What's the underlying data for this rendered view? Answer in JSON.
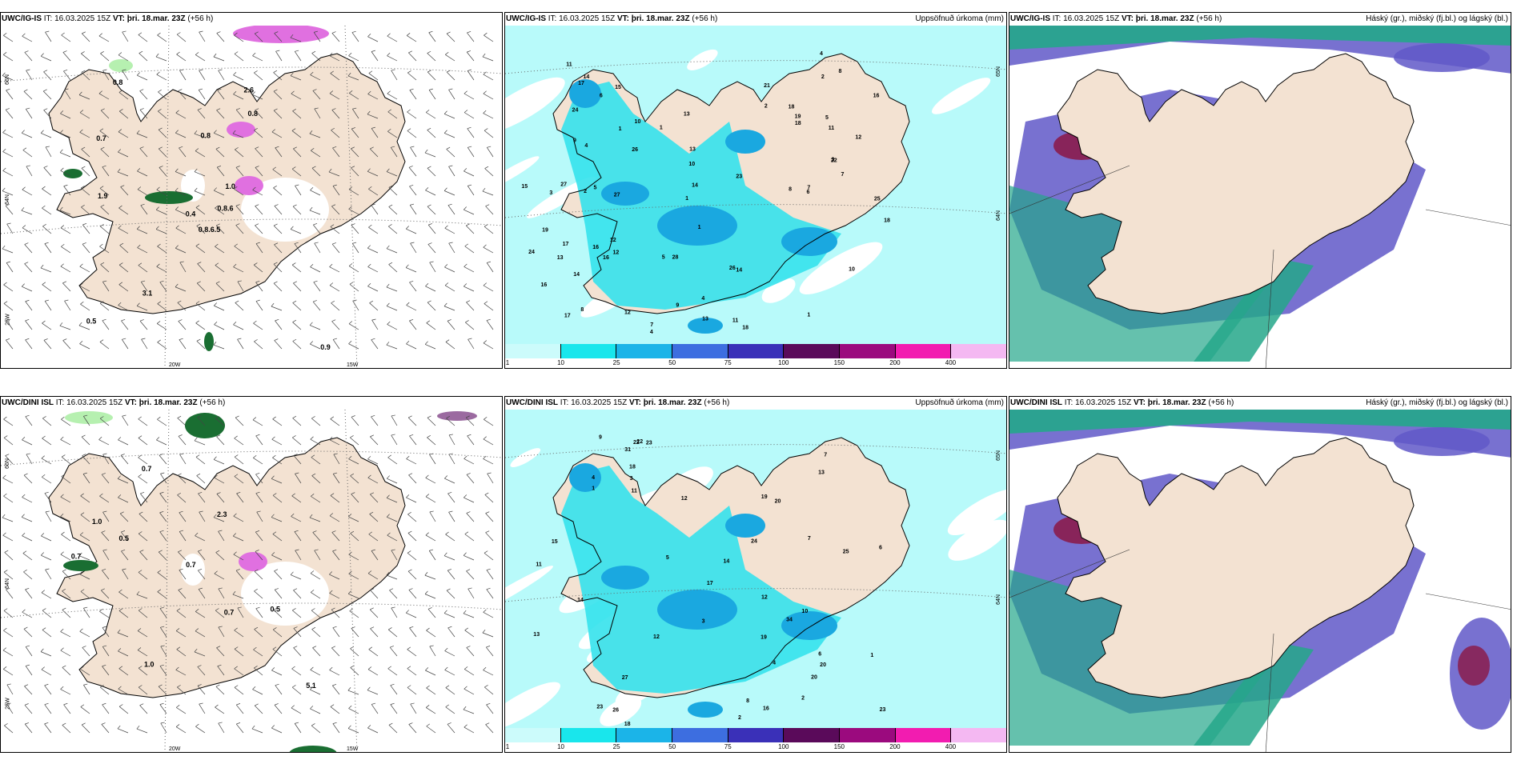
{
  "panels": [
    {
      "id": "top-left",
      "row": 0,
      "col": 0,
      "kind": "wind",
      "model": "UWC/IG-IS",
      "it_label": "IT:",
      "it_value": "16.03.2025 15Z",
      "vt_label": "VT:",
      "vt_value": "þri. 18.mar. 23Z",
      "lead": "(+56 h)",
      "right_title": "",
      "values": [
        "0.8.6.5",
        "0.7",
        "0.4",
        "0.5",
        "1.0",
        "3.1",
        "2.6",
        "0.8",
        "0.8",
        "0.8.6",
        "0.8",
        "0.9",
        "1.9"
      ],
      "lat_labels": [
        "66N",
        "64N",
        "25W"
      ],
      "lon_labels": [
        "20W",
        "15W"
      ]
    },
    {
      "id": "top-mid",
      "row": 0,
      "col": 1,
      "kind": "precip",
      "model": "UWC/IG-IS",
      "it_label": "IT:",
      "it_value": "16.03.2025 15Z",
      "vt_label": "VT:",
      "vt_value": "þri. 18.mar. 23Z",
      "lead": "(+56 h)",
      "right_title": "Uppsöfnuð úrkoma (mm)",
      "values": [
        "8",
        "1",
        "7",
        "1",
        "4",
        "1",
        "1",
        "16",
        "28",
        "25",
        "16",
        "6",
        "7",
        "12",
        "17",
        "16",
        "14",
        "13",
        "27",
        "23",
        "26",
        "24",
        "12",
        "6",
        "5",
        "10",
        "9",
        "4",
        "8",
        "11",
        "3",
        "13",
        "4",
        "18",
        "17",
        "26",
        "17",
        "19",
        "24",
        "14",
        "21",
        "22",
        "18",
        "27",
        "13",
        "16",
        "14",
        "11",
        "15",
        "19",
        "12",
        "8",
        "10",
        "4",
        "7",
        "5",
        "9",
        "10",
        "18",
        "11",
        "15",
        "12",
        "13",
        "18",
        "14",
        "3",
        "5",
        "2",
        "2",
        "1",
        "2"
      ],
      "lat_labels": [
        "65N",
        "64N"
      ],
      "lon_labels": []
    },
    {
      "id": "top-right",
      "row": 0,
      "col": 2,
      "kind": "cloud",
      "model": "UWC/IG-IS",
      "it_label": "IT:",
      "it_value": "16.03.2025 15Z",
      "vt_label": "VT:",
      "vt_value": "þri. 18.mar. 23Z",
      "lead": "(+56 h)",
      "right_title": "Háský (gr.), miðský (fj.bl.) og lágský (bl.)",
      "values": [],
      "lat_labels": [],
      "lon_labels": []
    },
    {
      "id": "bottom-left",
      "row": 1,
      "col": 0,
      "kind": "wind",
      "model": "UWC/DINI ISL",
      "it_label": "IT:",
      "it_value": "16.03.2025 15Z",
      "vt_label": "VT:",
      "vt_value": "þri. 18.mar. 23Z",
      "lead": "(+56 h)",
      "right_title": "",
      "values": [
        "0.5",
        "1.0",
        "0.7",
        "0.7",
        "1.0",
        "2.3",
        "0.7",
        "0.7",
        "5.1",
        "0.5"
      ],
      "lat_labels": [
        "66N",
        "64N",
        "25W"
      ],
      "lon_labels": [
        "20W",
        "15W"
      ]
    },
    {
      "id": "bottom-mid",
      "row": 1,
      "col": 1,
      "kind": "precip",
      "model": "UWC/DINI ISL",
      "it_label": "IT:",
      "it_value": "16.03.2025 15Z",
      "vt_label": "VT:",
      "vt_value": "þri. 18.mar. 23Z",
      "lead": "(+56 h)",
      "right_title": "Uppsöfnuð úrkoma (mm)",
      "values": [
        "12",
        "2",
        "7",
        "4",
        "1",
        "19",
        "20",
        "18",
        "24",
        "14",
        "12",
        "13",
        "11",
        "10",
        "9",
        "6",
        "7",
        "3",
        "20",
        "25",
        "23",
        "22",
        "26",
        "20",
        "34",
        "31",
        "27",
        "23",
        "22",
        "18",
        "17",
        "19",
        "15",
        "14",
        "16",
        "23",
        "13",
        "12",
        "11",
        "8",
        "6",
        "5",
        "3",
        "1",
        "2",
        "4"
      ],
      "lat_labels": [
        "65N",
        "64N"
      ],
      "lon_labels": []
    },
    {
      "id": "bottom-right",
      "row": 1,
      "col": 2,
      "kind": "cloud",
      "model": "UWC/DINI ISL",
      "it_label": "IT:",
      "it_value": "16.03.2025 15Z",
      "vt_label": "VT:",
      "vt_value": "þri. 18.mar. 23Z",
      "lead": "(+56 h)",
      "right_title": "Háský (gr.), miðský (fj.bl.) og lágský (bl.)",
      "values": [],
      "lat_labels": [],
      "lon_labels": []
    }
  ],
  "colorbar": {
    "ticks": [
      "1",
      "10",
      "25",
      "50",
      "75",
      "100",
      "150",
      "200",
      "400"
    ],
    "colors": [
      "#ccfbfb",
      "#19e6ec",
      "#1bb4e8",
      "#3d6ee0",
      "#3a30b8",
      "#5a0a5a",
      "#9b0a7e",
      "#f21cb0",
      "#f4b8f2"
    ]
  },
  "map_colors": {
    "land": "#f3e2d2",
    "precip_light": "#b8fafa",
    "precip_mid": "#35e2ec",
    "precip_heavy": "#1aa8e0",
    "cloud_high": "#24a78a",
    "cloud_mid": "#6058c8",
    "cloud_low": "#8a1c4c",
    "snow_pink": "#e070e0",
    "green_light": "#b6f0b0",
    "green_dark": "#1a6e32"
  }
}
